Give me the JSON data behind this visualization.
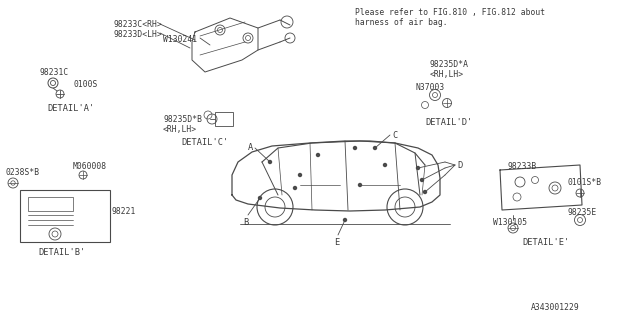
{
  "bg_color": "#ffffff",
  "line_color": "#4a4a4a",
  "text_color": "#3a3a3a",
  "title_note_line1": "Please refer to FIG.810 , FIG.812 about",
  "title_note_line2": "harness of air bag.",
  "diagram_id": "A343001229",
  "detail_a_label": "DETAIL'A'",
  "detail_b_label": "DETAIL'B'",
  "detail_c_label": "DETAIL'C'",
  "detail_d_label": "DETAIL'D'",
  "detail_e_label": "DETAIL'E'",
  "parts": {
    "98233C_RH": "98233C<RH>",
    "98233D_LH": "98233D<LH>",
    "W130241": "W130241",
    "98231C": "98231C",
    "0100S": "0100S",
    "98235D_B_1": "98235D*B",
    "98235D_B_2": "<RH,LH>",
    "98235D_A_1": "98235D*A",
    "98235D_A_2": "<RH,LH>",
    "N37003": "N37003",
    "0238S_B": "0238S*B",
    "M060008": "M060008",
    "98221": "98221",
    "98233B": "98233B",
    "W130105": "W130105",
    "0101S_B": "0101S*B",
    "98235E": "98235E"
  }
}
